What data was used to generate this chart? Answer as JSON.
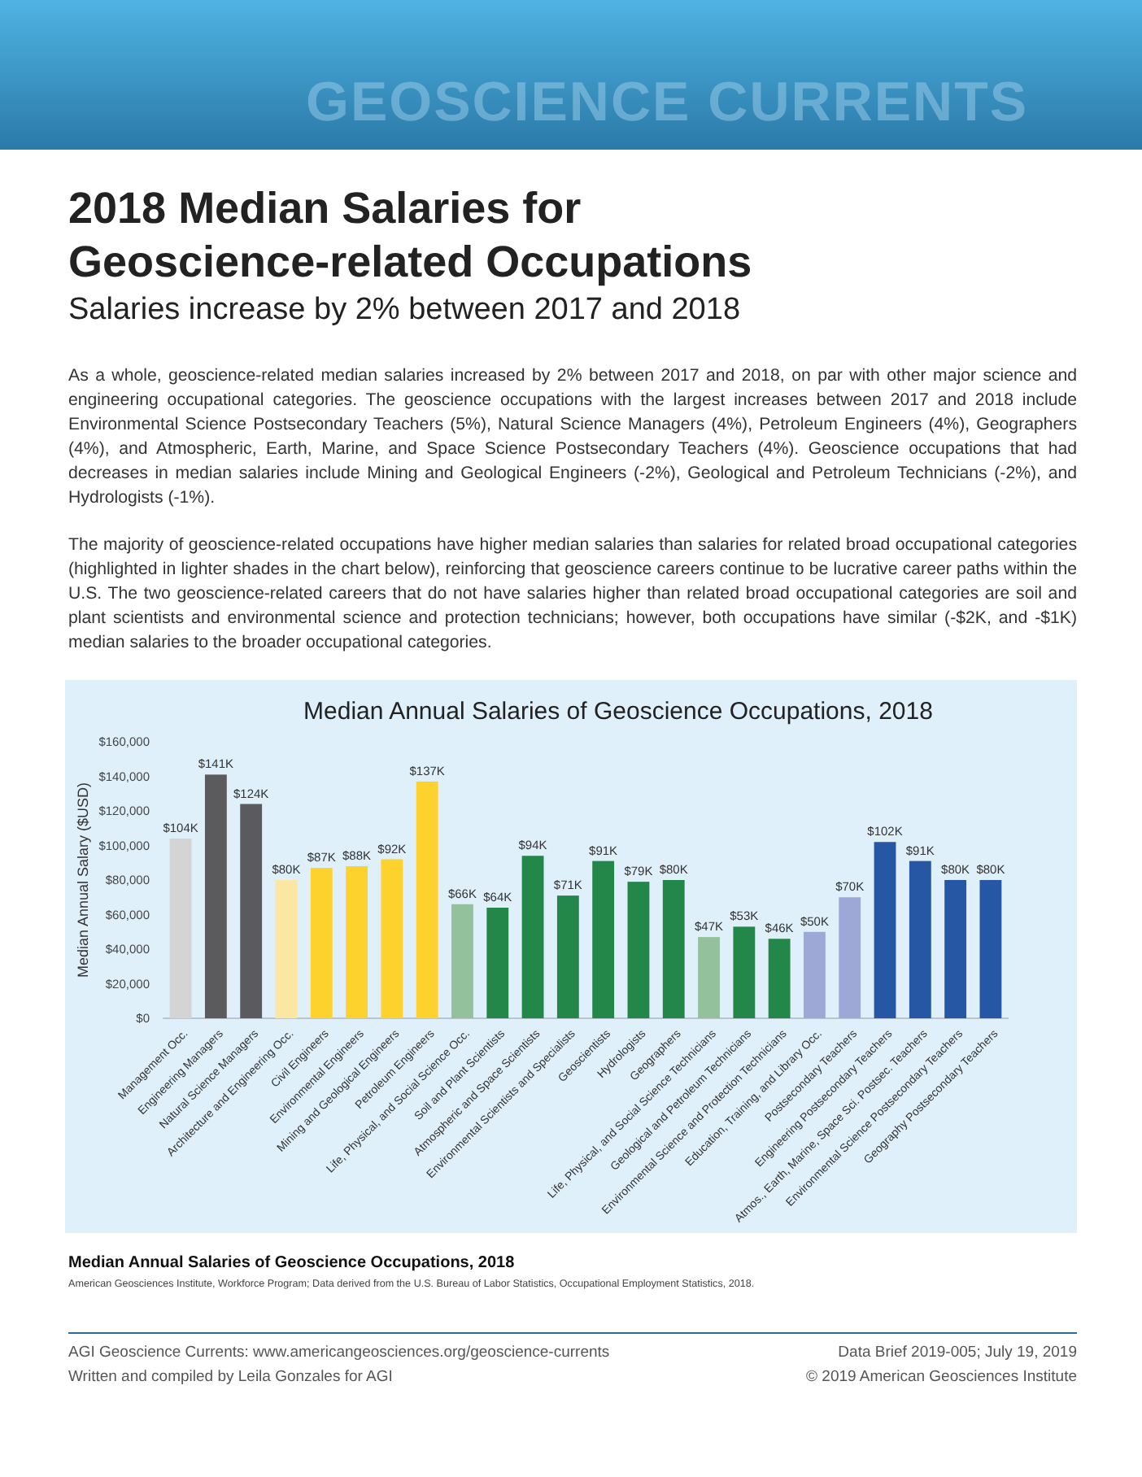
{
  "chart_data": {
    "type": "bar",
    "title": "Median Annual Salaries of Geoscience Occupations, 2018",
    "ylabel": "Median Annual Salary ($USD)",
    "categories": [
      "Management Occ.",
      "Engineering Managers",
      "Natural Science Managers",
      "Architecture and Engineering Occ.",
      "Civil Engineers",
      "Environmental Engineers",
      "Mining and Geological Engineers",
      "Petroleum Engineers",
      "Life, Physical, and Social Science Occ.",
      "Soil and Plant Scientists",
      "Atmospheric and Space Scientists",
      "Environmental Scientists and Specialists",
      "Geoscientists",
      "Hydrologists",
      "Geographers",
      "Life, Physical, and Social Science Technicians",
      "Geological and Petroleum Technicians",
      "Environmental Science and Protection Technicians",
      "Education, Training, and Library Occ.",
      "Postsecondary Teachers",
      "Engineering Postsecondary Teachers",
      "Atmos., Earth, Marine, Space Sci. Postsec. Teachers",
      "Environmental Science Postsecondary Teachers",
      "Geography Postsecondary Teachers"
    ],
    "values": [
      104000,
      141000,
      124000,
      80000,
      87000,
      88000,
      92000,
      137000,
      66000,
      64000,
      94000,
      71000,
      91000,
      79000,
      80000,
      47000,
      53000,
      46000,
      50000,
      70000,
      102000,
      91000,
      80000,
      80000
    ],
    "value_labels": [
      "$104K",
      "$141K",
      "$124K",
      "$80K",
      "$87K",
      "$88K",
      "$92K",
      "$137K",
      "$66K",
      "$64K",
      "$94K",
      "$71K",
      "$91K",
      "$79K",
      "$80K",
      "$47K",
      "$53K",
      "$46K",
      "$50K",
      "$70K",
      "$102K",
      "$91K",
      "$80K",
      "$80K"
    ],
    "colors": [
      "#d4d4d4",
      "#5b5b5d",
      "#5b5b5d",
      "#fbe7a1",
      "#fdd22d",
      "#fdd22d",
      "#fdd22d",
      "#fdd22d",
      "#92c19b",
      "#23874a",
      "#23874a",
      "#23874a",
      "#23874a",
      "#23874a",
      "#23874a",
      "#92c19b",
      "#23874a",
      "#23874a",
      "#9ea8d6",
      "#9ea8d6",
      "#2657a4",
      "#2657a4",
      "#2657a4",
      "#2657a4"
    ],
    "ylim": [
      0,
      160000
    ],
    "yticks": [
      {
        "value": 0,
        "label": "$0"
      },
      {
        "value": 20000,
        "label": "$20,000"
      },
      {
        "value": 40000,
        "label": "$40,000"
      },
      {
        "value": 60000,
        "label": "$60,000"
      },
      {
        "value": 80000,
        "label": "$80,000"
      },
      {
        "value": 100000,
        "label": "$100,000"
      },
      {
        "value": 120000,
        "label": "$120,000"
      },
      {
        "value": 140000,
        "label": "$140,000"
      },
      {
        "value": 160000,
        "label": "$160,000"
      }
    ],
    "annotations": [
      "GEOSCIENCE  CURRENTS",
      "2018 Median Salaries for Geoscience-related Occupations",
      "Salaries increase by 2% between 2017 and 2018",
      "As a whole, geoscience-related median salaries increased by 2% between 2017 and 2018, on par with other major science and engineering occupational categories. The geoscience occupations with the largest increases between 2017 and 2018 include Environmental Science Postsecondary Teachers (5%), Natural Science Managers (4%), Petroleum Engineers (4%), Geographers (4%), and Atmospheric, Earth, Marine, and Space Science Postsecondary Teachers (4%). Geoscience occupations that had decreases in median salaries include Mining and Geological Engineers (-2%), Geological and Petroleum Technicians (-2%), and Hydrologists (-1%).",
      "The majority of geoscience-related occupations have higher median salaries than salaries for related broad occupational categories (highlighted in lighter shades in the chart below), reinforcing that geoscience careers continue to be lucrative career paths within the U.S. The two geoscience-related careers that do not have salaries higher than related broad occupational categories are soil and plant scientists and environmental science and protection technicians; however, both occupations have similar (-$2K, and -$1K) median salaries to the broader occupational categories.",
      "Median Annual Salaries of Geoscience Occupations, 2018",
      "American Geosciences Institute, Workforce Program; Data derived from the U.S. Bureau of Labor Statistics, Occupational Employment Statistics, 2018.",
      "AGI Geoscience Currents: www.americangeosciences.org/geoscience-currents",
      "Written and compiled by Leila Gonzales for AGI",
      "Data Brief 2019-005; July 19, 2019",
      "© 2019 American Geosciences Institute"
    ]
  }
}
